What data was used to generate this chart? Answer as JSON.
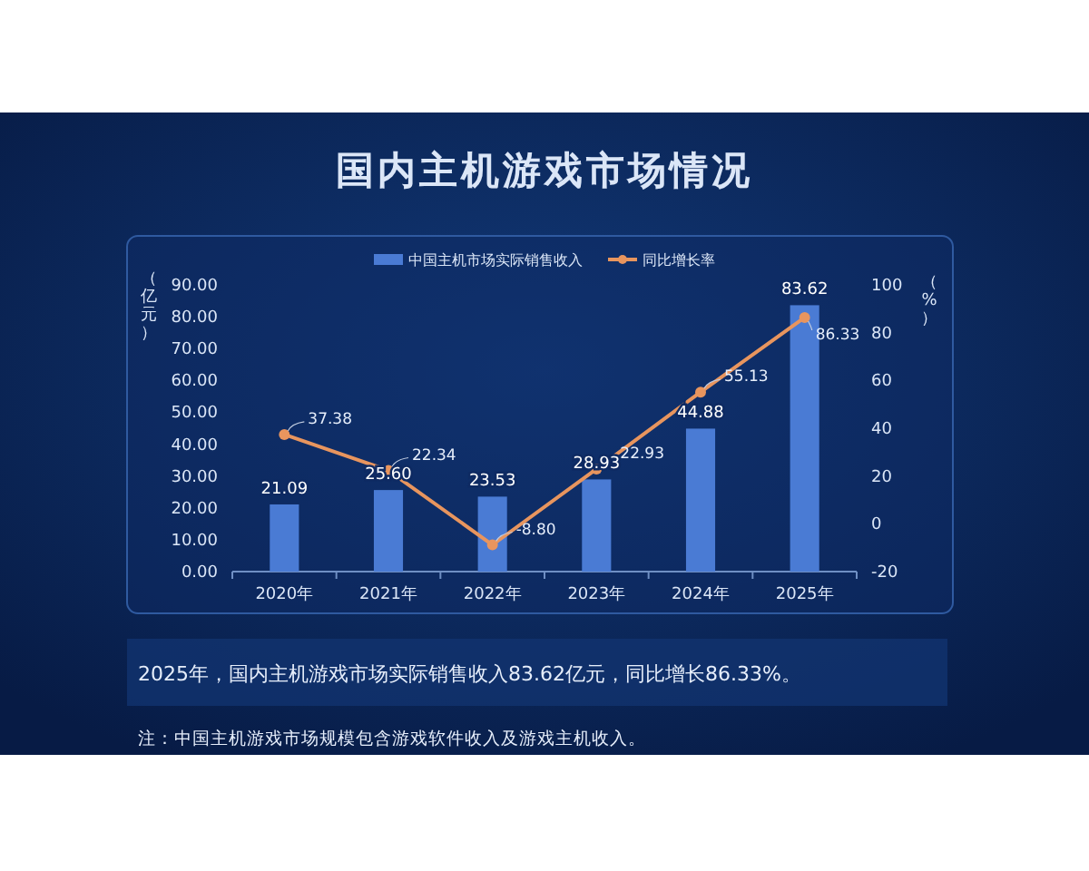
{
  "chart_data": {
    "type": "bar",
    "title": "国内主机游戏市场情况",
    "ylabel": "（亿元）",
    "y2label": "（%）",
    "categories": [
      "2020年",
      "2021年",
      "2022年",
      "2023年",
      "2024年",
      "2025年"
    ],
    "series": [
      {
        "name": "中国主机市场实际销售收入",
        "color": "#4a7bd4",
        "values": [
          21.09,
          25.6,
          23.53,
          28.93,
          44.88,
          83.62
        ],
        "value_labels": [
          "21.09",
          "25.60",
          "23.53",
          "28.93",
          "44.88",
          "83.62"
        ]
      },
      {
        "name": "同比增长率",
        "type": "line",
        "axis": "y2",
        "color": "#e8955e",
        "values": [
          37.38,
          22.34,
          -8.8,
          22.93,
          55.13,
          86.33
        ],
        "value_labels": [
          "37.38",
          "22.34",
          "-8.80",
          "22.93",
          "55.13",
          "86.33"
        ]
      }
    ],
    "ylim": [
      0,
      90
    ],
    "yticks": [
      {
        "value": 0,
        "label": "0.00"
      },
      {
        "value": 10,
        "label": "10.00"
      },
      {
        "value": 20,
        "label": "20.00"
      },
      {
        "value": 30,
        "label": "30.00"
      },
      {
        "value": 40,
        "label": "40.00"
      },
      {
        "value": 50,
        "label": "50.00"
      },
      {
        "value": 60,
        "label": "60.00"
      },
      {
        "value": 70,
        "label": "70.00"
      },
      {
        "value": 80,
        "label": "80.00"
      },
      {
        "value": 90,
        "label": "90.00"
      }
    ],
    "y2lim": [
      -20,
      100
    ],
    "y2ticks": [
      -20,
      0,
      20,
      40,
      60,
      80,
      100
    ],
    "annotations": [
      "2025年，国内主机游戏市场实际销售收入83.62亿元，同比增长86.33%。",
      "注：中国主机游戏市场规模包含游戏软件收入及游戏主机收入。"
    ],
    "legend": "top",
    "marker": "circle",
    "line_style": "solid",
    "grid": false
  }
}
